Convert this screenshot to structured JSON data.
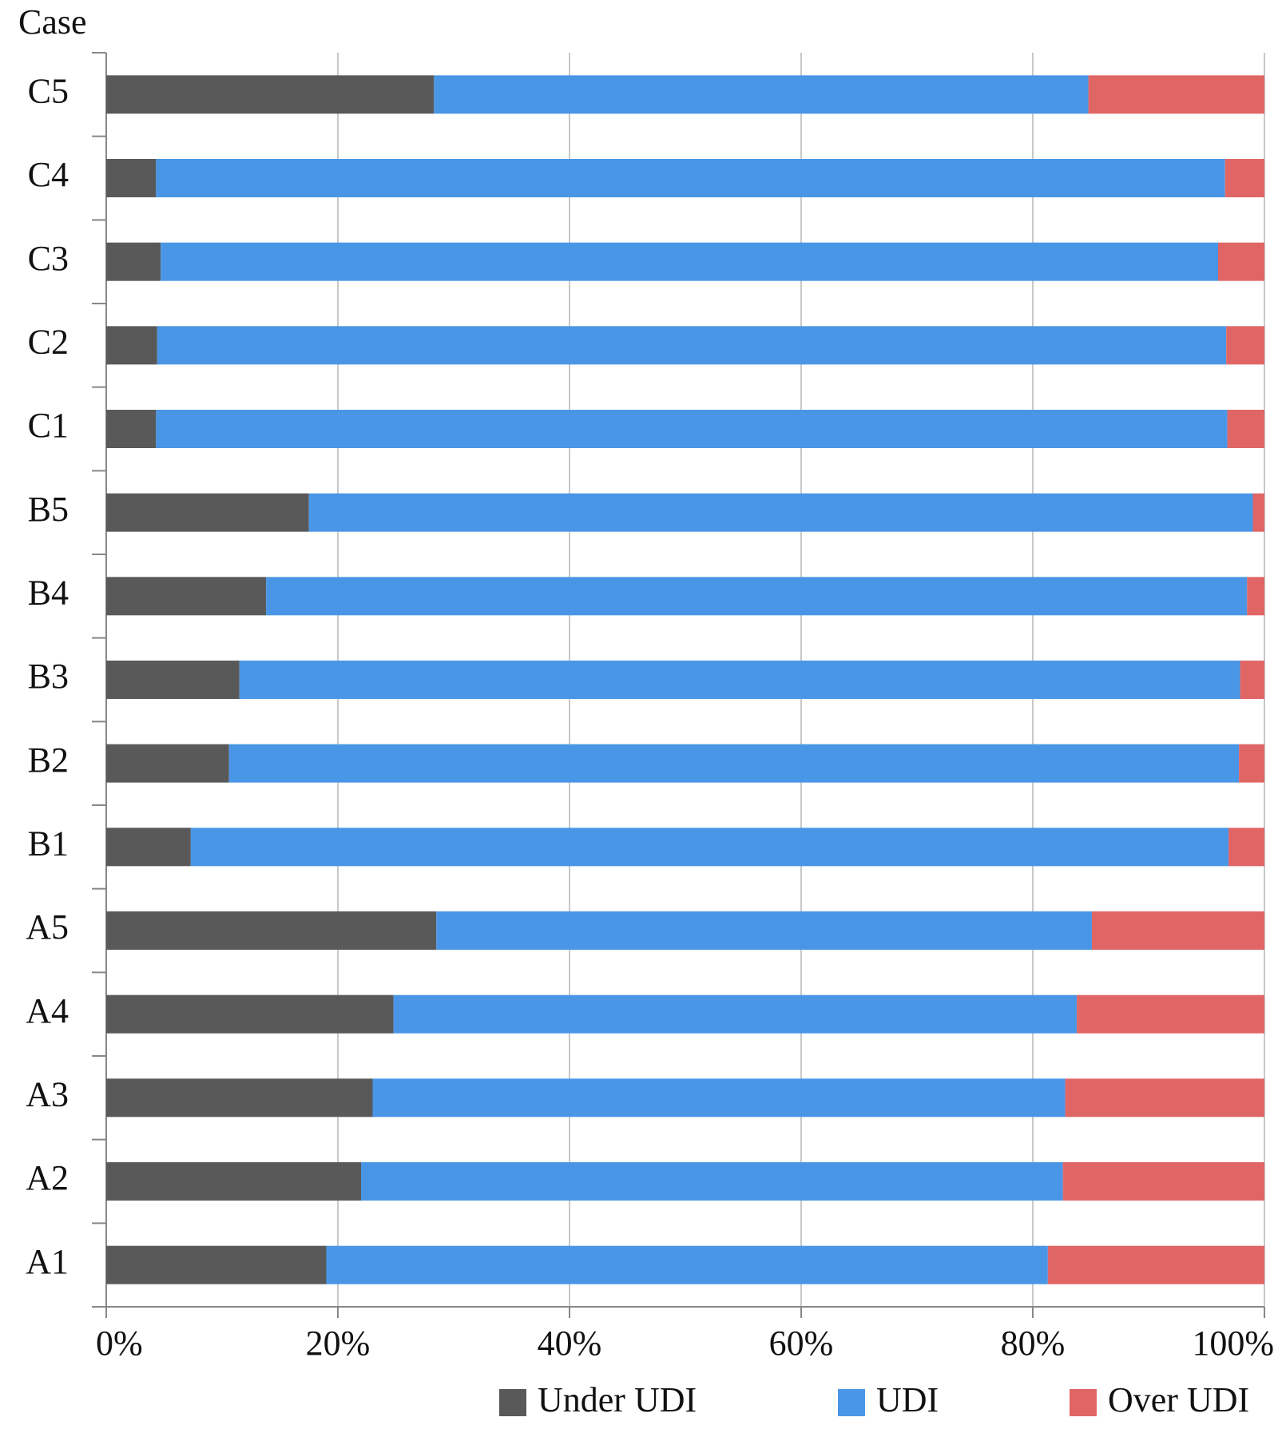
{
  "chart_data": {
    "type": "stacked_barh",
    "y_axis_label": "Case",
    "categories": [
      "A1",
      "A2",
      "A3",
      "A4",
      "A5",
      "B1",
      "B2",
      "B3",
      "B4",
      "B5",
      "C1",
      "C2",
      "C3",
      "C4",
      "C5"
    ],
    "series": [
      {
        "name": "Under UDI",
        "color": "#595959",
        "values": [
          19.0,
          22.0,
          23.0,
          24.8,
          28.5,
          7.3,
          10.6,
          11.5,
          13.8,
          17.5,
          4.3,
          4.4,
          4.7,
          4.3,
          28.3
        ]
      },
      {
        "name": "UDI",
        "color": "#4a96e6",
        "values": [
          62.3,
          60.6,
          59.8,
          59.0,
          56.6,
          89.6,
          87.2,
          86.4,
          84.7,
          81.5,
          92.5,
          92.3,
          91.3,
          92.3,
          56.5
        ]
      },
      {
        "name": "Over UDI",
        "color": "#e06666",
        "values": [
          18.7,
          17.4,
          17.2,
          16.2,
          14.9,
          3.1,
          2.2,
          2.1,
          1.5,
          1.0,
          3.2,
          3.3,
          4.0,
          3.4,
          15.2
        ]
      }
    ],
    "xlim": [
      0,
      100
    ],
    "xticks": [
      {
        "value": 0,
        "label": "0%"
      },
      {
        "value": 20,
        "label": "20%"
      },
      {
        "value": 40,
        "label": "40%"
      },
      {
        "value": 60,
        "label": "60%"
      },
      {
        "value": 80,
        "label": "80%"
      },
      {
        "value": 100,
        "label": "100%"
      }
    ],
    "grid": true,
    "legend": "bottom"
  }
}
